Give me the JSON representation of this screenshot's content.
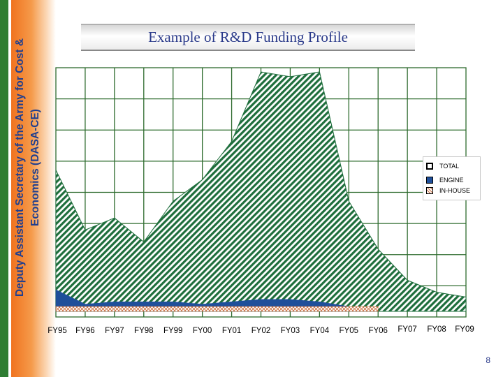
{
  "side_label": {
    "line1": "Deputy Assistant Secretary of the Army for Cost &",
    "line2": "Economics (DASA-CE)"
  },
  "title": "Example of R&D Funding Profile",
  "page_number": "8",
  "colors": {
    "total_fill": "#1e6e3c",
    "engine_fill": "#1f4f9a",
    "inhouse_fill": "#c86a3a",
    "grid": "#2e6b2e",
    "side_text": "#1f3f8f"
  },
  "chart_data": {
    "type": "area",
    "title": "Example of R&D Funding Profile",
    "xlabel": "",
    "ylabel": "",
    "grid": true,
    "legend_position": "right",
    "categories": [
      "FY95",
      "FY96",
      "FY97",
      "FY98",
      "FY99",
      "FY00",
      "FY01",
      "FY02",
      "FY03",
      "FY04",
      "FY05",
      "FY06",
      "FY07",
      "FY08",
      "FY09"
    ],
    "ylim": [
      0,
      100
    ],
    "series": [
      {
        "name": "TOTAL",
        "values": [
          59,
          34,
          39,
          29,
          46,
          55,
          71,
          100,
          98,
          100,
          46,
          26,
          13,
          8,
          6
        ]
      },
      {
        "name": "ENGINE",
        "values": [
          9,
          3,
          4,
          4,
          4,
          3,
          4,
          5,
          5,
          4,
          2,
          1,
          null,
          null,
          null
        ]
      },
      {
        "name": "IN-HOUSE",
        "values": [
          2,
          2,
          2,
          2,
          2,
          2,
          2,
          2,
          2,
          2,
          2,
          2,
          null,
          null,
          null
        ]
      }
    ]
  }
}
